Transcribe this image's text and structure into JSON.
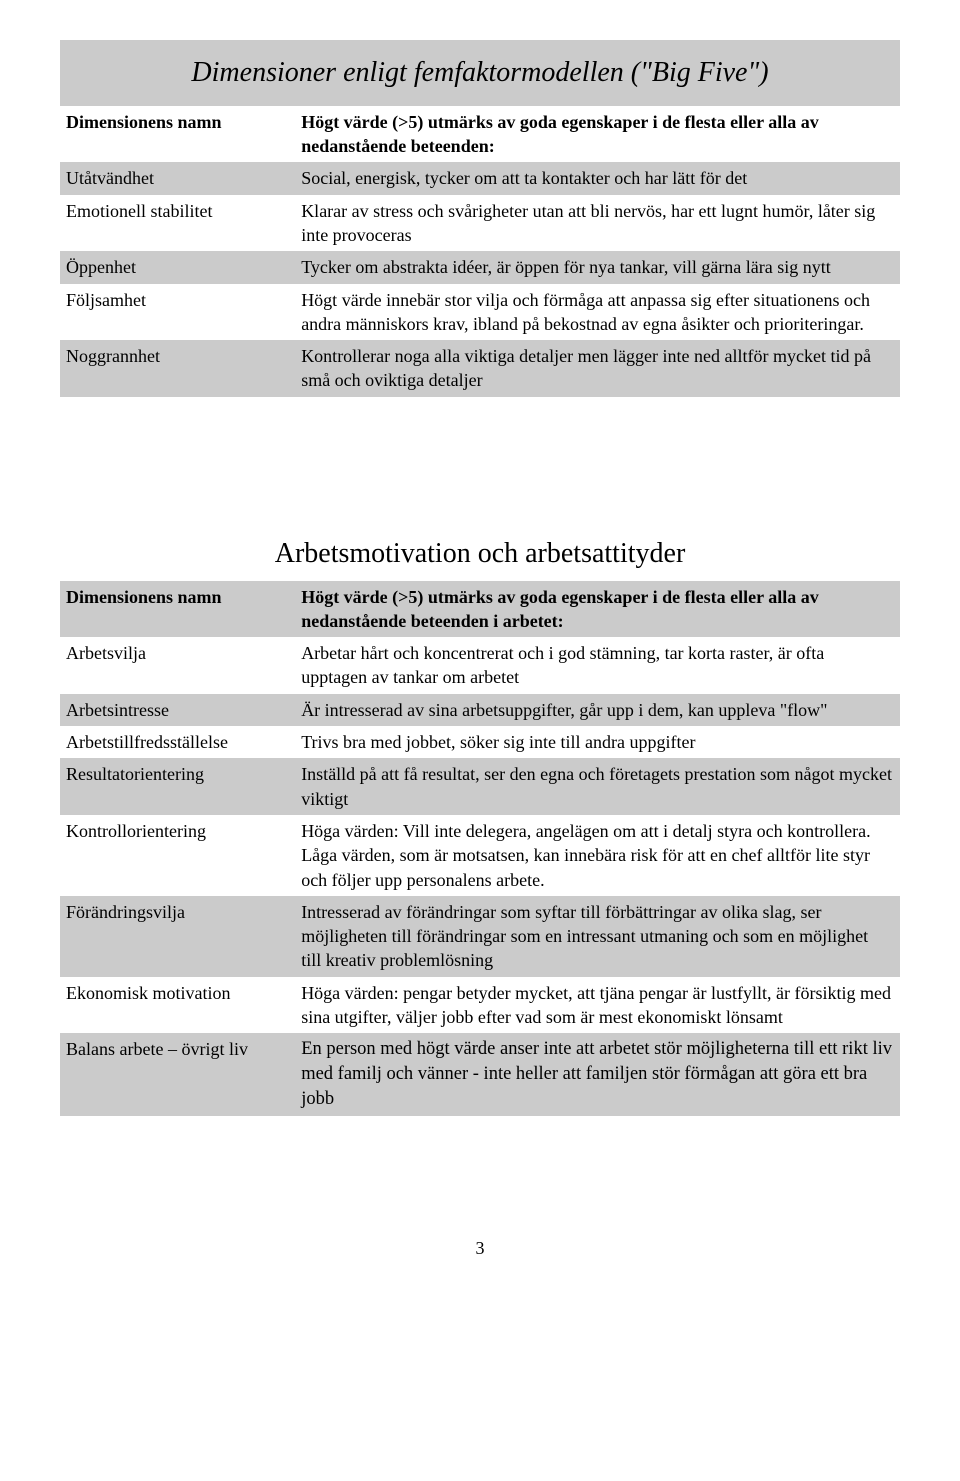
{
  "page_number": "3",
  "table1": {
    "title": "Dimensioner enligt femfaktormodellen (\"Big Five\")",
    "header_label": "Dimensionens namn",
    "header_value": "Högt värde (>5) utmärks av goda egenskaper i de flesta eller alla av nedanstående beteenden:",
    "rows": [
      {
        "label": "Utåtvändhet",
        "value": "Social, energisk, tycker om att ta kontakter och har lätt för det"
      },
      {
        "label": "Emotionell stabilitet",
        "value": "Klarar av stress och svårigheter utan att bli nervös, har ett lugnt humör, låter sig inte provoceras"
      },
      {
        "label": "Öppenhet",
        "value": "Tycker om abstrakta idéer, är öppen för nya tankar, vill gärna lära sig nytt"
      },
      {
        "label": "Följsamhet",
        "value": "Högt värde innebär stor vilja och förmåga att anpassa sig efter situationens och andra människors krav, ibland på bekostnad av egna åsikter och prioriteringar."
      },
      {
        "label": "Noggrannhet",
        "value": "Kontrollerar noga alla viktiga detaljer men lägger inte ned alltför mycket tid på små och oviktiga detaljer"
      }
    ]
  },
  "table2": {
    "title": "Arbetsmotivation och arbetsattityder",
    "header_label": "Dimensionens namn",
    "header_value": "Högt värde (>5) utmärks av goda egenskaper i de flesta eller alla av nedanstående beteenden i arbetet:",
    "rows": [
      {
        "label": "Arbetsvilja",
        "value": "Arbetar hårt och koncentrerat och i god stämning, tar korta raster, är ofta upptagen av tankar om arbetet"
      },
      {
        "label": "Arbetsintresse",
        "value": "Är intresserad av sina arbetsuppgifter, går upp i dem, kan uppleva \"flow\""
      },
      {
        "label": "Arbetstillfredsställelse",
        "value": "Trivs bra med jobbet, söker sig inte till andra uppgifter"
      },
      {
        "label": "Resultatorientering",
        "value": "Inställd på att få resultat, ser den egna och företagets prestation som något mycket viktigt"
      },
      {
        "label": "Kontrollorientering",
        "value": "Höga värden: Vill inte delegera, angelägen om att i detalj styra och kontrollera. Låga värden, som är motsatsen, kan innebära risk för att en chef alltför lite styr och följer upp personalens arbete."
      },
      {
        "label": "Förändringsvilja",
        "value": "Intresserad av förändringar som syftar till förbättringar av olika slag, ser möjligheten till förändringar som en intressant utmaning och som en möjlighet till kreativ problemlösning"
      },
      {
        "label": "Ekonomisk motivation",
        "value": "Höga värden: pengar betyder mycket, att tjäna pengar är lustfyllt, är försiktig med sina utgifter, väljer jobb efter vad som är mest ekonomiskt lönsamt"
      },
      {
        "label": "Balans arbete – övrigt liv",
        "value": "En person med högt värde anser inte att arbetet stör möjligheterna till ett rikt liv med familj och vänner - inte heller att familjen stör förmågan att göra ett bra jobb"
      }
    ]
  }
}
